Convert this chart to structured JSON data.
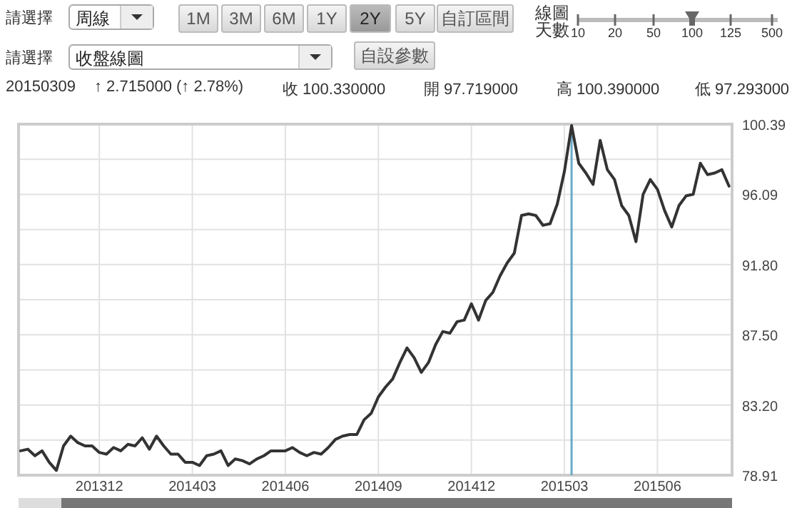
{
  "chart_data": {
    "type": "line",
    "annotations": [
      "請選擇",
      "周線",
      "1M",
      "3M",
      "6M",
      "1Y",
      "2Y",
      "5Y",
      "自訂區間",
      "線圖天數",
      "10",
      "20",
      "50",
      "100",
      "125",
      "500",
      "請選擇",
      "收盤線圖",
      "自設參數",
      "20150309",
      "↑ 2.715000 (↑ 2.78%)",
      "收 100.330000",
      "開 97.719000",
      "高 100.390000",
      "低 97.293000"
    ],
    "x": [
      "2013-09-16",
      "2013-09-23",
      "2013-09-30",
      "2013-10-07",
      "2013-10-14",
      "2013-10-21",
      "2013-10-28",
      "2013-11-04",
      "2013-11-11",
      "2013-11-18",
      "2013-11-25",
      "2013-12-02",
      "2013-12-09",
      "2013-12-16",
      "2013-12-23",
      "2013-12-30",
      "2014-01-06",
      "2014-01-13",
      "2014-01-20",
      "2014-01-27",
      "2014-02-03",
      "2014-02-10",
      "2014-02-17",
      "2014-02-24",
      "2014-03-03",
      "2014-03-10",
      "2014-03-17",
      "2014-03-24",
      "2014-03-31",
      "2014-04-07",
      "2014-04-14",
      "2014-04-21",
      "2014-04-28",
      "2014-05-05",
      "2014-05-12",
      "2014-05-19",
      "2014-05-26",
      "2014-06-02",
      "2014-06-09",
      "2014-06-16",
      "2014-06-23",
      "2014-06-30",
      "2014-07-07",
      "2014-07-14",
      "2014-07-21",
      "2014-07-28",
      "2014-08-04",
      "2014-08-11",
      "2014-08-18",
      "2014-08-25",
      "2014-09-01",
      "2014-09-08",
      "2014-09-15",
      "2014-09-22",
      "2014-09-29",
      "2014-10-06",
      "2014-10-13",
      "2014-10-20",
      "2014-10-27",
      "2014-11-03",
      "2014-11-10",
      "2014-11-17",
      "2014-11-24",
      "2014-12-01",
      "2014-12-08",
      "2014-12-15",
      "2014-12-22",
      "2014-12-29",
      "2015-01-05",
      "2015-01-12",
      "2015-01-19",
      "2015-01-26",
      "2015-02-02",
      "2015-02-09",
      "2015-02-16",
      "2015-02-23",
      "2015-03-02",
      "2015-03-09",
      "2015-03-16",
      "2015-03-23",
      "2015-03-30",
      "2015-04-06",
      "2015-04-13",
      "2015-04-20",
      "2015-04-27",
      "2015-05-04",
      "2015-05-11",
      "2015-05-18",
      "2015-05-25",
      "2015-06-01",
      "2015-06-08",
      "2015-06-15",
      "2015-06-22",
      "2015-06-29",
      "2015-07-06",
      "2015-07-13",
      "2015-07-20",
      "2015-07-27",
      "2015-08-03",
      "2015-08-10"
    ],
    "series": [
      {
        "color": "#333333",
        "values": [
          80.4,
          80.5,
          80.1,
          80.4,
          79.7,
          79.2,
          80.7,
          81.3,
          80.9,
          80.7,
          80.7,
          80.3,
          80.2,
          80.6,
          80.4,
          80.8,
          80.7,
          81.2,
          80.5,
          81.3,
          80.7,
          80.2,
          80.2,
          79.7,
          79.7,
          79.5,
          80.1,
          80.2,
          80.4,
          79.5,
          79.9,
          79.8,
          79.6,
          79.9,
          80.1,
          80.4,
          80.4,
          80.4,
          80.6,
          80.3,
          80.1,
          80.3,
          80.2,
          80.6,
          81.1,
          81.3,
          81.4,
          81.4,
          82.3,
          82.7,
          83.7,
          84.3,
          84.8,
          85.8,
          86.7,
          86.1,
          85.2,
          85.8,
          86.9,
          87.7,
          87.6,
          88.3,
          88.4,
          89.4,
          88.4,
          89.6,
          90.1,
          91.1,
          91.9,
          92.5,
          94.8,
          94.9,
          94.8,
          94.2,
          94.3,
          95.5,
          97.5,
          100.3,
          98.0,
          97.4,
          96.7,
          99.4,
          97.6,
          97.0,
          95.4,
          94.8,
          93.2,
          96.1,
          97.0,
          96.4,
          95.1,
          94.1,
          95.4,
          96.0,
          96.1,
          98.0,
          97.3,
          97.4,
          97.6,
          96.6
        ]
      }
    ],
    "xlim": [
      "2013-09-14",
      "2015-08-13"
    ],
    "xticks": [
      {
        "value": "2013-12-02",
        "label": "201312"
      },
      {
        "value": "2014-03-03",
        "label": "201403"
      },
      {
        "value": "2014-06-02",
        "label": "201406"
      },
      {
        "value": "2014-09-01",
        "label": "201409"
      },
      {
        "value": "2014-12-01",
        "label": "201412"
      },
      {
        "value": "2015-03-02",
        "label": "201503"
      },
      {
        "value": "2015-06-01",
        "label": "201506"
      }
    ],
    "ylim": [
      78.91,
      100.39
    ],
    "yticks": [
      78.91,
      {
        "value": 81.06,
        "label": null
      },
      {
        "value": 83.2,
        "label": "83.20"
      },
      {
        "value": 85.35,
        "label": null
      },
      {
        "value": 87.5,
        "label": "87.50"
      },
      {
        "value": 89.65,
        "label": null
      },
      {
        "value": 91.8,
        "label": "91.80"
      },
      {
        "value": 93.94,
        "label": null
      },
      96.09,
      {
        "value": 98.24,
        "label": null
      },
      100.39
    ],
    "ref_lines": [
      {
        "axis": "x",
        "value": "2015-03-09",
        "color": "#6aaac8"
      }
    ],
    "grid": true,
    "marker": "none",
    "line_style": "solid"
  }
}
